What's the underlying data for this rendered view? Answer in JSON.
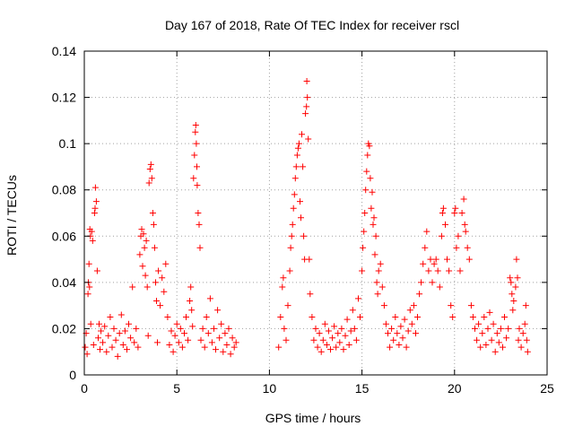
{
  "chart_data": {
    "type": "scatter",
    "title": "Day 167 of 2018, Rate Of TEC Index for receiver rscl",
    "xlabel": "GPS time / hours",
    "ylabel": "ROTI / TECUs",
    "xlim": [
      0,
      25
    ],
    "ylim": [
      0,
      0.14
    ],
    "xticks": [
      0,
      5,
      10,
      15,
      20,
      25
    ],
    "xtick_labels": [
      "0",
      "5",
      "10",
      "15",
      "20",
      "25"
    ],
    "yticks": [
      0,
      0.02,
      0.04,
      0.06,
      0.08,
      0.1,
      0.12,
      0.14
    ],
    "ytick_labels": [
      "0",
      "0.02",
      "0.04",
      "0.06",
      "0.08",
      "0.1",
      "0.12",
      "0.14"
    ],
    "grid": true,
    "marker": "plus",
    "marker_color": "#ff0000",
    "series": [
      {
        "name": "ROTI",
        "points": [
          [
            0.05,
            0.012
          ],
          [
            0.1,
            0.018
          ],
          [
            0.15,
            0.009
          ],
          [
            0.2,
            0.035
          ],
          [
            0.22,
            0.04
          ],
          [
            0.25,
            0.048
          ],
          [
            0.28,
            0.038
          ],
          [
            0.3,
            0.063
          ],
          [
            0.33,
            0.06
          ],
          [
            0.35,
            0.022
          ],
          [
            0.4,
            0.062
          ],
          [
            0.45,
            0.058
          ],
          [
            0.5,
            0.013
          ],
          [
            0.55,
            0.07
          ],
          [
            0.58,
            0.072
          ],
          [
            0.6,
            0.081
          ],
          [
            0.65,
            0.075
          ],
          [
            0.7,
            0.045
          ],
          [
            0.75,
            0.016
          ],
          [
            0.8,
            0.022
          ],
          [
            0.85,
            0.011
          ],
          [
            0.9,
            0.019
          ],
          [
            1.0,
            0.014
          ],
          [
            1.1,
            0.021
          ],
          [
            1.2,
            0.01
          ],
          [
            1.3,
            0.017
          ],
          [
            1.4,
            0.025
          ],
          [
            1.5,
            0.012
          ],
          [
            1.6,
            0.02
          ],
          [
            1.7,
            0.015
          ],
          [
            1.8,
            0.008
          ],
          [
            1.9,
            0.018
          ],
          [
            2.0,
            0.026
          ],
          [
            2.1,
            0.013
          ],
          [
            2.2,
            0.019
          ],
          [
            2.3,
            0.011
          ],
          [
            2.4,
            0.022
          ],
          [
            2.5,
            0.016
          ],
          [
            2.6,
            0.038
          ],
          [
            2.7,
            0.014
          ],
          [
            2.8,
            0.02
          ],
          [
            2.9,
            0.012
          ],
          [
            3.0,
            0.052
          ],
          [
            3.05,
            0.06
          ],
          [
            3.1,
            0.063
          ],
          [
            3.15,
            0.047
          ],
          [
            3.2,
            0.061
          ],
          [
            3.25,
            0.055
          ],
          [
            3.3,
            0.043
          ],
          [
            3.35,
            0.058
          ],
          [
            3.4,
            0.038
          ],
          [
            3.45,
            0.017
          ],
          [
            3.5,
            0.083
          ],
          [
            3.55,
            0.089
          ],
          [
            3.6,
            0.091
          ],
          [
            3.65,
            0.085
          ],
          [
            3.7,
            0.07
          ],
          [
            3.75,
            0.065
          ],
          [
            3.8,
            0.055
          ],
          [
            3.85,
            0.04
          ],
          [
            3.9,
            0.032
          ],
          [
            3.95,
            0.014
          ],
          [
            4.0,
            0.045
          ],
          [
            4.1,
            0.03
          ],
          [
            4.2,
            0.042
          ],
          [
            4.3,
            0.036
          ],
          [
            4.4,
            0.048
          ],
          [
            4.5,
            0.025
          ],
          [
            4.6,
            0.013
          ],
          [
            4.7,
            0.019
          ],
          [
            4.8,
            0.01
          ],
          [
            4.9,
            0.017
          ],
          [
            5.0,
            0.022
          ],
          [
            5.1,
            0.014
          ],
          [
            5.2,
            0.02
          ],
          [
            5.3,
            0.012
          ],
          [
            5.4,
            0.018
          ],
          [
            5.5,
            0.025
          ],
          [
            5.6,
            0.015
          ],
          [
            5.7,
            0.032
          ],
          [
            5.75,
            0.038
          ],
          [
            5.8,
            0.028
          ],
          [
            5.85,
            0.021
          ],
          [
            5.9,
            0.085
          ],
          [
            5.95,
            0.095
          ],
          [
            6.0,
            0.105
          ],
          [
            6.02,
            0.108
          ],
          [
            6.05,
            0.1
          ],
          [
            6.08,
            0.09
          ],
          [
            6.1,
            0.082
          ],
          [
            6.15,
            0.07
          ],
          [
            6.2,
            0.065
          ],
          [
            6.25,
            0.055
          ],
          [
            6.3,
            0.015
          ],
          [
            6.4,
            0.02
          ],
          [
            6.5,
            0.012
          ],
          [
            6.6,
            0.025
          ],
          [
            6.7,
            0.018
          ],
          [
            6.8,
            0.033
          ],
          [
            6.9,
            0.014
          ],
          [
            7.0,
            0.02
          ],
          [
            7.1,
            0.011
          ],
          [
            7.2,
            0.028
          ],
          [
            7.3,
            0.016
          ],
          [
            7.4,
            0.022
          ],
          [
            7.5,
            0.01
          ],
          [
            7.6,
            0.018
          ],
          [
            7.7,
            0.013
          ],
          [
            7.8,
            0.02
          ],
          [
            7.9,
            0.009
          ],
          [
            8.0,
            0.016
          ],
          [
            8.1,
            0.012
          ],
          [
            8.2,
            0.014
          ],
          [
            10.5,
            0.012
          ],
          [
            10.6,
            0.025
          ],
          [
            10.7,
            0.038
          ],
          [
            10.75,
            0.042
          ],
          [
            10.8,
            0.02
          ],
          [
            10.9,
            0.015
          ],
          [
            11.0,
            0.03
          ],
          [
            11.1,
            0.045
          ],
          [
            11.15,
            0.055
          ],
          [
            11.2,
            0.06
          ],
          [
            11.25,
            0.065
          ],
          [
            11.3,
            0.072
          ],
          [
            11.35,
            0.078
          ],
          [
            11.4,
            0.085
          ],
          [
            11.45,
            0.09
          ],
          [
            11.5,
            0.095
          ],
          [
            11.55,
            0.098
          ],
          [
            11.6,
            0.1
          ],
          [
            11.65,
            0.075
          ],
          [
            11.7,
            0.068
          ],
          [
            11.75,
            0.104
          ],
          [
            11.8,
            0.09
          ],
          [
            11.85,
            0.06
          ],
          [
            11.9,
            0.05
          ],
          [
            11.95,
            0.113
          ],
          [
            12.0,
            0.116
          ],
          [
            12.02,
            0.127
          ],
          [
            12.05,
            0.12
          ],
          [
            12.1,
            0.102
          ],
          [
            12.15,
            0.05
          ],
          [
            12.2,
            0.035
          ],
          [
            12.3,
            0.025
          ],
          [
            12.4,
            0.015
          ],
          [
            12.5,
            0.02
          ],
          [
            12.6,
            0.012
          ],
          [
            12.7,
            0.018
          ],
          [
            12.8,
            0.01
          ],
          [
            12.9,
            0.015
          ],
          [
            13.0,
            0.022
          ],
          [
            13.1,
            0.013
          ],
          [
            13.2,
            0.019
          ],
          [
            13.3,
            0.011
          ],
          [
            13.4,
            0.016
          ],
          [
            13.5,
            0.021
          ],
          [
            13.6,
            0.012
          ],
          [
            13.7,
            0.018
          ],
          [
            13.8,
            0.014
          ],
          [
            13.9,
            0.02
          ],
          [
            14.0,
            0.011
          ],
          [
            14.1,
            0.017
          ],
          [
            14.2,
            0.024
          ],
          [
            14.3,
            0.013
          ],
          [
            14.4,
            0.019
          ],
          [
            14.5,
            0.028
          ],
          [
            14.6,
            0.02
          ],
          [
            14.7,
            0.015
          ],
          [
            14.8,
            0.033
          ],
          [
            14.9,
            0.025
          ],
          [
            15.0,
            0.045
          ],
          [
            15.05,
            0.055
          ],
          [
            15.1,
            0.062
          ],
          [
            15.15,
            0.07
          ],
          [
            15.2,
            0.08
          ],
          [
            15.25,
            0.088
          ],
          [
            15.3,
            0.095
          ],
          [
            15.35,
            0.1
          ],
          [
            15.4,
            0.099
          ],
          [
            15.45,
            0.085
          ],
          [
            15.5,
            0.072
          ],
          [
            15.55,
            0.079
          ],
          [
            15.6,
            0.065
          ],
          [
            15.65,
            0.068
          ],
          [
            15.7,
            0.052
          ],
          [
            15.75,
            0.06
          ],
          [
            15.8,
            0.04
          ],
          [
            15.85,
            0.035
          ],
          [
            15.9,
            0.045
          ],
          [
            16.0,
            0.048
          ],
          [
            16.1,
            0.038
          ],
          [
            16.2,
            0.03
          ],
          [
            16.3,
            0.022
          ],
          [
            16.4,
            0.018
          ],
          [
            16.5,
            0.012
          ],
          [
            16.6,
            0.02
          ],
          [
            16.7,
            0.015
          ],
          [
            16.8,
            0.025
          ],
          [
            16.9,
            0.018
          ],
          [
            17.0,
            0.013
          ],
          [
            17.1,
            0.021
          ],
          [
            17.2,
            0.016
          ],
          [
            17.3,
            0.024
          ],
          [
            17.4,
            0.012
          ],
          [
            17.5,
            0.019
          ],
          [
            17.6,
            0.028
          ],
          [
            17.7,
            0.022
          ],
          [
            17.8,
            0.03
          ],
          [
            17.9,
            0.018
          ],
          [
            18.0,
            0.025
          ],
          [
            18.1,
            0.035
          ],
          [
            18.2,
            0.04
          ],
          [
            18.3,
            0.048
          ],
          [
            18.4,
            0.055
          ],
          [
            18.5,
            0.062
          ],
          [
            18.6,
            0.045
          ],
          [
            18.7,
            0.05
          ],
          [
            18.8,
            0.04
          ],
          [
            18.9,
            0.048
          ],
          [
            19.0,
            0.05
          ],
          [
            19.1,
            0.045
          ],
          [
            19.2,
            0.038
          ],
          [
            19.3,
            0.06
          ],
          [
            19.35,
            0.07
          ],
          [
            19.4,
            0.072
          ],
          [
            19.5,
            0.065
          ],
          [
            19.6,
            0.05
          ],
          [
            19.7,
            0.045
          ],
          [
            19.8,
            0.03
          ],
          [
            19.9,
            0.025
          ],
          [
            20.0,
            0.07
          ],
          [
            20.05,
            0.072
          ],
          [
            20.1,
            0.055
          ],
          [
            20.2,
            0.06
          ],
          [
            20.3,
            0.045
          ],
          [
            20.4,
            0.07
          ],
          [
            20.5,
            0.076
          ],
          [
            20.55,
            0.065
          ],
          [
            20.6,
            0.062
          ],
          [
            20.7,
            0.055
          ],
          [
            20.8,
            0.05
          ],
          [
            20.9,
            0.03
          ],
          [
            21.0,
            0.025
          ],
          [
            21.1,
            0.02
          ],
          [
            21.2,
            0.015
          ],
          [
            21.3,
            0.022
          ],
          [
            21.4,
            0.012
          ],
          [
            21.5,
            0.018
          ],
          [
            21.6,
            0.025
          ],
          [
            21.7,
            0.013
          ],
          [
            21.8,
            0.02
          ],
          [
            21.9,
            0.027
          ],
          [
            22.0,
            0.015
          ],
          [
            22.1,
            0.022
          ],
          [
            22.2,
            0.01
          ],
          [
            22.3,
            0.018
          ],
          [
            22.4,
            0.014
          ],
          [
            22.5,
            0.02
          ],
          [
            22.6,
            0.012
          ],
          [
            22.7,
            0.025
          ],
          [
            22.8,
            0.016
          ],
          [
            22.9,
            0.02
          ],
          [
            23.0,
            0.042
          ],
          [
            23.05,
            0.04
          ],
          [
            23.1,
            0.035
          ],
          [
            23.15,
            0.028
          ],
          [
            23.2,
            0.032
          ],
          [
            23.3,
            0.038
          ],
          [
            23.35,
            0.05
          ],
          [
            23.4,
            0.042
          ],
          [
            23.45,
            0.015
          ],
          [
            23.5,
            0.02
          ],
          [
            23.6,
            0.012
          ],
          [
            23.7,
            0.018
          ],
          [
            23.8,
            0.022
          ],
          [
            23.85,
            0.03
          ],
          [
            23.9,
            0.015
          ],
          [
            23.95,
            0.01
          ]
        ]
      }
    ]
  }
}
